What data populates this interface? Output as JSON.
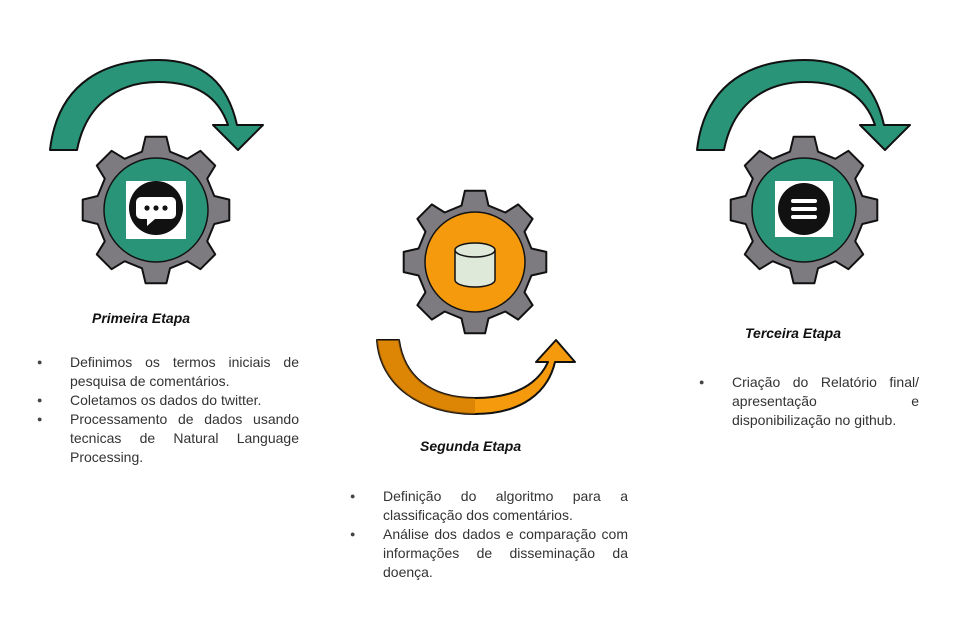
{
  "colors": {
    "gear": "#7d7b80",
    "gear_outline": "#111111",
    "teal": "#2a9478",
    "orange": "#f59a0c",
    "orange_dark": "#c97500",
    "icon_bg": "#ffffff",
    "icon_dark": "#111111",
    "cylinder": "#dfe9da"
  },
  "stages": [
    {
      "title": "Primeira Etapa",
      "icon": "chat-bubble-icon",
      "arrow": "curved-arrow-over-right",
      "bullets": [
        "Definimos os termos iniciais de pesquisa de comentários.",
        "Coletamos os dados do twitter.",
        "Processamento de dados usando tecnicas de Natural Language Processing."
      ]
    },
    {
      "title": "Segunda Etapa",
      "icon": "database-icon",
      "arrow": "curved-arrow-under-right",
      "bullets": [
        "Definição do algoritmo para a classificação dos comentários.",
        "Análise dos dados e comparação com informações de disseminação da doença."
      ]
    },
    {
      "title": "Terceira Etapa",
      "icon": "menu-list-icon",
      "arrow": "curved-arrow-over-right",
      "bullets": [
        "Criação do Relatório final/ apresentação e disponibilização no github."
      ]
    }
  ]
}
